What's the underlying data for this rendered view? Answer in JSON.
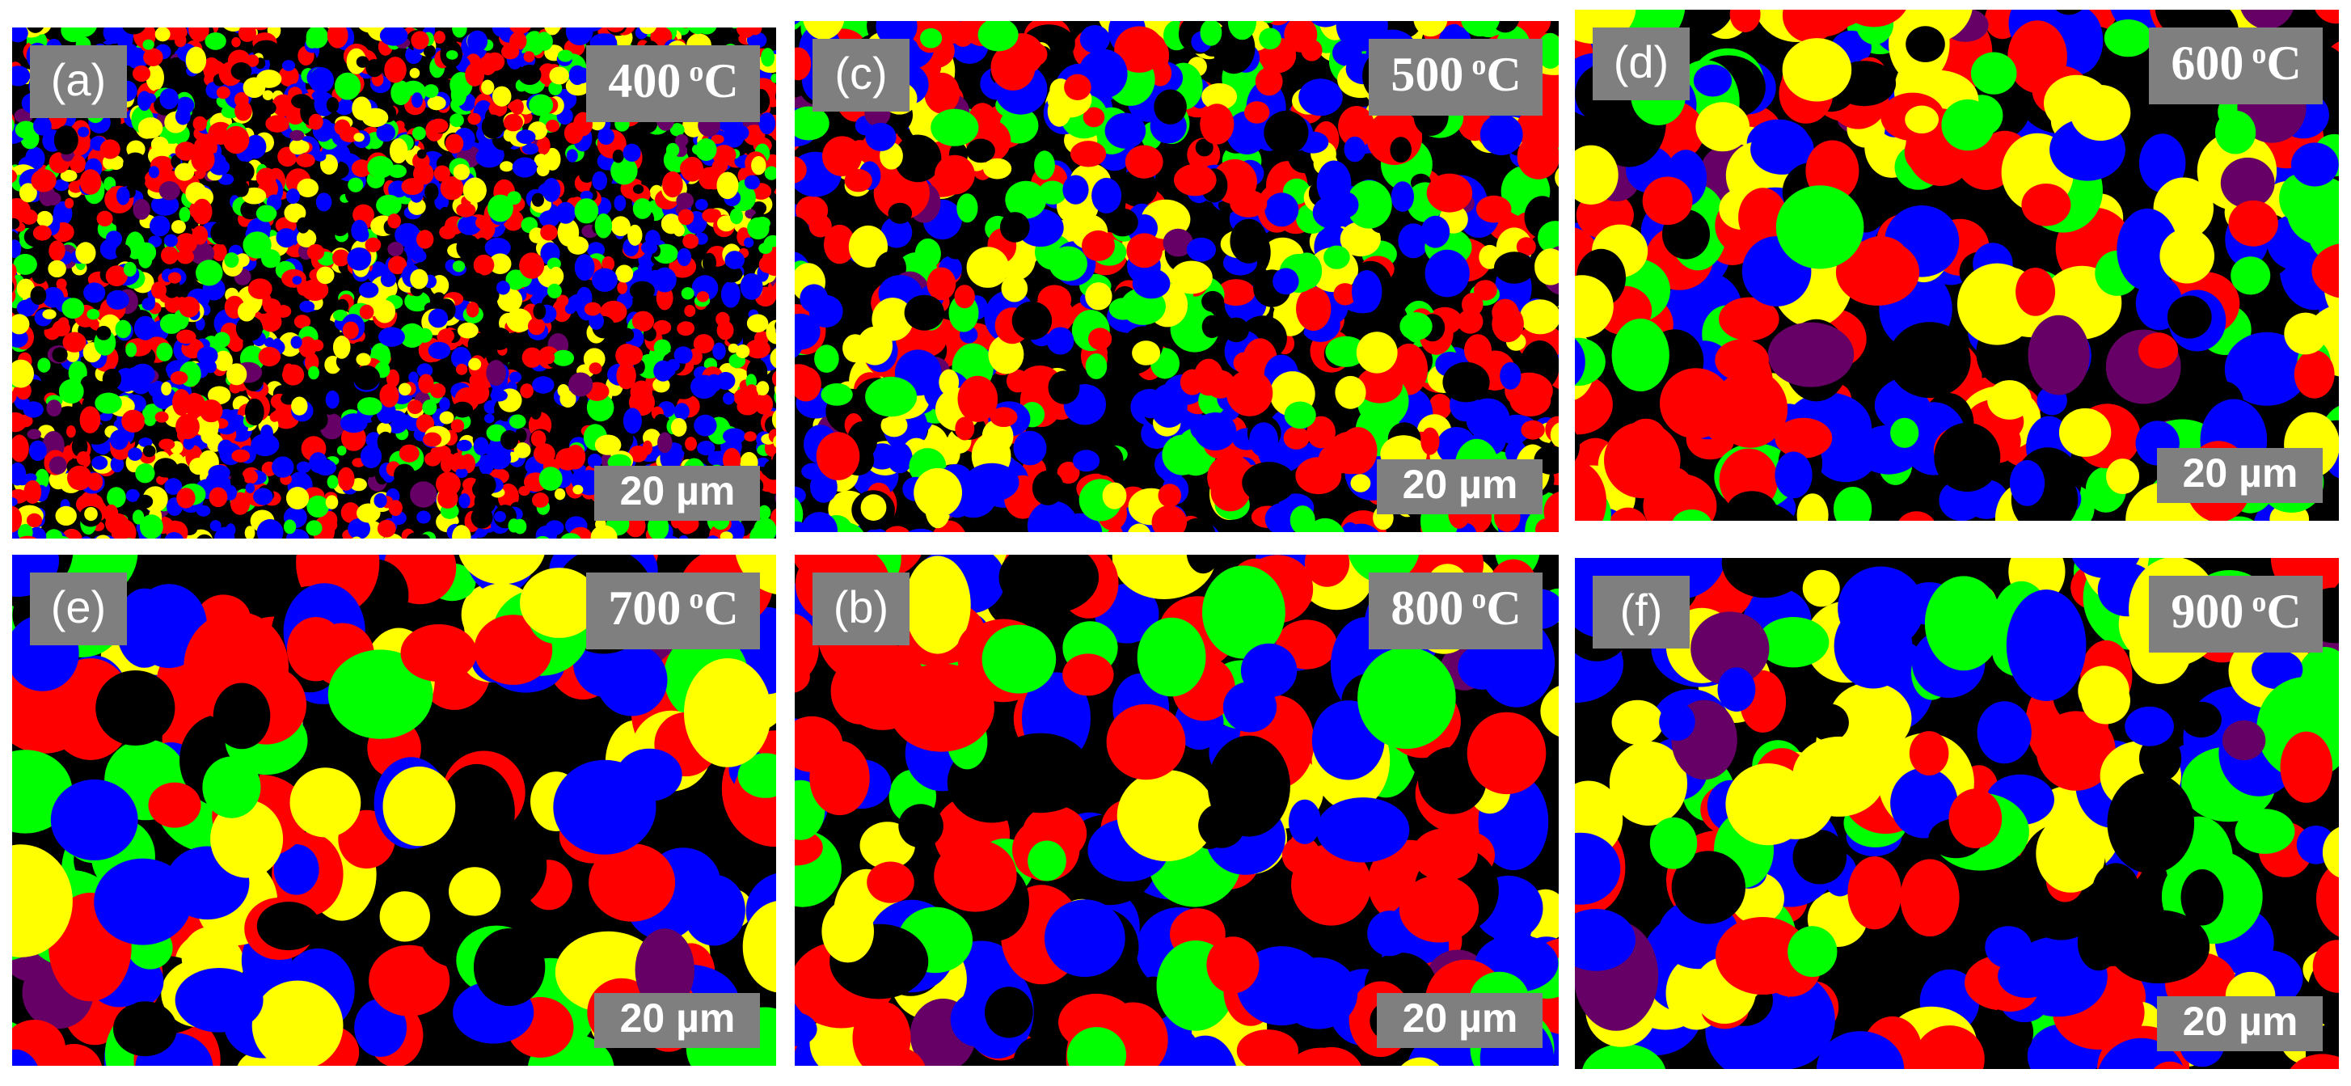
{
  "panels": [
    {
      "label": "(a)",
      "temperature": {
        "value": "400",
        "sup": "o",
        "unit": "C"
      },
      "scale_bar": "20 µm"
    },
    {
      "label": "(c)",
      "temperature": {
        "value": "500",
        "sup": "o",
        "unit": "C"
      },
      "scale_bar": "20 µm"
    },
    {
      "label": "(d)",
      "temperature": {
        "value": "600",
        "sup": "o",
        "unit": "C"
      },
      "scale_bar": "20 µm"
    },
    {
      "label": "(e)",
      "temperature": {
        "value": "700",
        "sup": "o",
        "unit": "C"
      },
      "scale_bar": "20 µm"
    },
    {
      "label": "(b)",
      "temperature": {
        "value": "800",
        "sup": "o",
        "unit": "C"
      },
      "scale_bar": "20 µm"
    },
    {
      "label": "(f)",
      "temperature": {
        "value": "900",
        "sup": "o",
        "unit": "C"
      },
      "scale_bar": "20 µm"
    }
  ]
}
